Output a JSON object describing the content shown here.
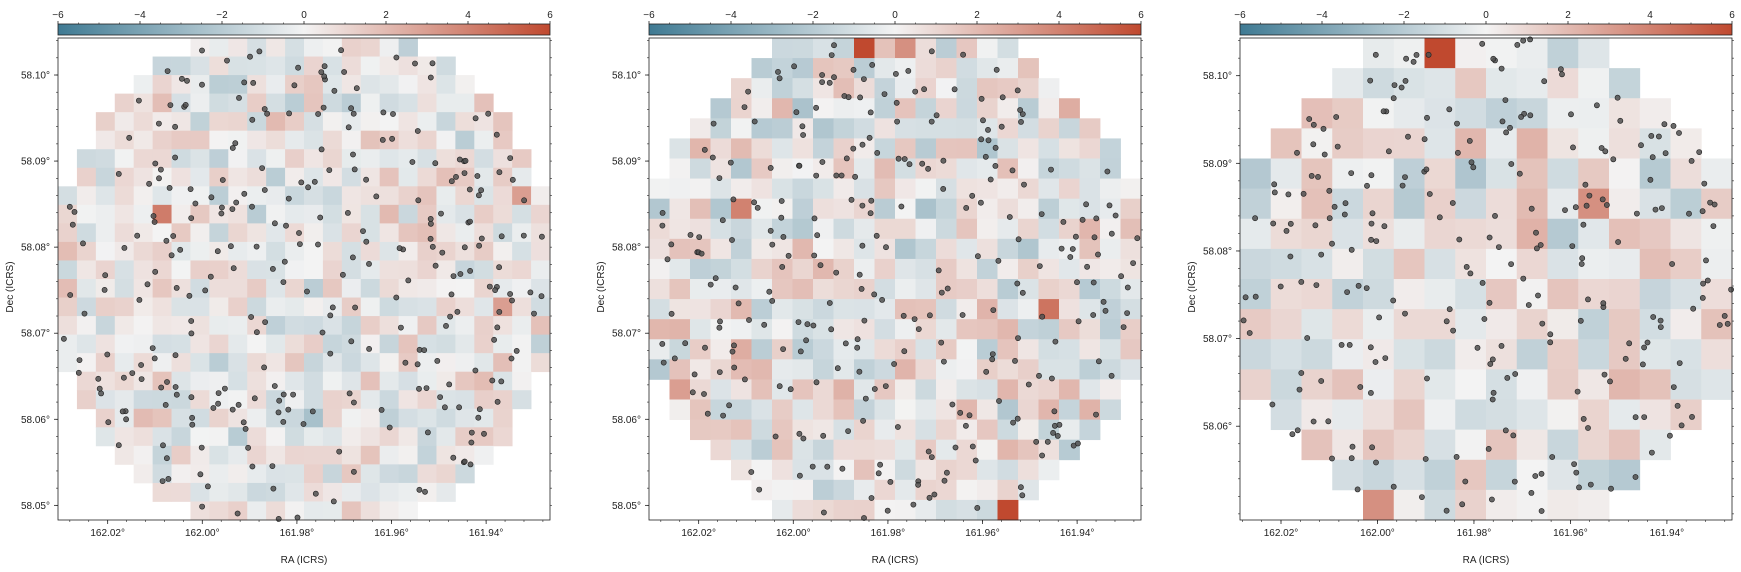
{
  "figure": {
    "colors": {
      "negative": "#3f7a93",
      "neutral": "#f3f3f3",
      "positive": "#c0492f",
      "marker_fill": "#505050",
      "marker_edge": "#1e1e1e",
      "axis": "#222222"
    },
    "colorbar": {
      "ticks": [
        -6,
        -4,
        -2,
        0,
        2,
        4,
        6
      ],
      "tick_labels": [
        "−6",
        "−4",
        "−2",
        "0",
        "2",
        "4",
        "6"
      ]
    }
  },
  "chart_data": [
    {
      "type": "heatmap",
      "title": "",
      "xlabel": "RA (ICRS)",
      "ylabel": "Dec (ICRS)",
      "x_tick_labels": [
        "162.02°",
        "162.00°",
        "161.98°",
        "161.96°",
        "161.94°"
      ],
      "y_tick_labels": [
        "58.05°",
        "58.06°",
        "58.07°",
        "58.08°",
        "58.09°",
        "58.10°"
      ],
      "ra_ticks": [
        162.02,
        162.0,
        161.98,
        161.96,
        161.94
      ],
      "dec_ticks": [
        58.05,
        58.06,
        58.07,
        58.08,
        58.09,
        58.1
      ],
      "xlim": [
        162.0305,
        161.9265
      ],
      "ylim": [
        58.0483,
        58.1043
      ],
      "grid": false,
      "colorbar_range": [
        -6,
        6
      ],
      "cells": {
        "nx": 26,
        "ny": 26,
        "seed": 11,
        "amplitude": 1.6,
        "hot_spots": [
          [
            5,
            9,
            4.2
          ],
          [
            23,
            14,
            3.0
          ],
          [
            24,
            8,
            3.0
          ],
          [
            13,
            20,
            -2.5
          ]
        ]
      },
      "point_count": 290
    },
    {
      "type": "heatmap",
      "title": "",
      "xlabel": "RA (ICRS)",
      "ylabel": "Dec (ICRS)",
      "x_tick_labels": [
        "162.02°",
        "162.00°",
        "161.98°",
        "161.96°",
        "161.94°"
      ],
      "y_tick_labels": [
        "58.05°",
        "58.06°",
        "58.07°",
        "58.08°",
        "58.09°",
        "58.10°"
      ],
      "ra_ticks": [
        162.02,
        162.0,
        161.98,
        161.96,
        161.94
      ],
      "dec_ticks": [
        58.05,
        58.06,
        58.07,
        58.08,
        58.09,
        58.1
      ],
      "xlim": [
        162.0305,
        161.9265
      ],
      "ylim": [
        58.0483,
        58.1043
      ],
      "grid": false,
      "colorbar_range": [
        -6,
        6
      ],
      "cells": {
        "nx": 24,
        "ny": 24,
        "seed": 23,
        "amplitude": 2.0,
        "hot_spots": [
          [
            10,
            0,
            6.0
          ],
          [
            12,
            0,
            3.5
          ],
          [
            17,
            23,
            6.0
          ],
          [
            19,
            13,
            4.5
          ],
          [
            4,
            8,
            4.0
          ],
          [
            1,
            17,
            3.0
          ]
        ]
      },
      "point_count": 280
    },
    {
      "type": "heatmap",
      "title": "",
      "xlabel": "RA (ICRS)",
      "ylabel": "Dec (ICRS)",
      "x_tick_labels": [
        "162.02°",
        "162.00°",
        "161.98°",
        "161.96°",
        "161.94°"
      ],
      "y_tick_labels": [
        "58.06°",
        "58.07°",
        "58.08°",
        "58.09°",
        "58.10°"
      ],
      "ra_ticks": [
        162.02,
        162.0,
        161.98,
        161.96,
        161.94
      ],
      "dec_ticks": [
        58.06,
        58.07,
        58.08,
        58.09,
        58.1
      ],
      "xlim": [
        162.0285,
        161.9265
      ],
      "ylim": [
        58.0493,
        58.1043
      ],
      "grid": false,
      "colorbar_range": [
        -6,
        6
      ],
      "cells": {
        "nx": 16,
        "ny": 16,
        "seed": 37,
        "amplitude": 1.9,
        "hot_spots": [
          [
            6,
            0,
            6.0
          ],
          [
            4,
            15,
            3.5
          ],
          [
            11,
            5,
            3.5
          ],
          [
            16,
            5,
            2.0
          ]
        ]
      },
      "point_count": 250
    }
  ]
}
